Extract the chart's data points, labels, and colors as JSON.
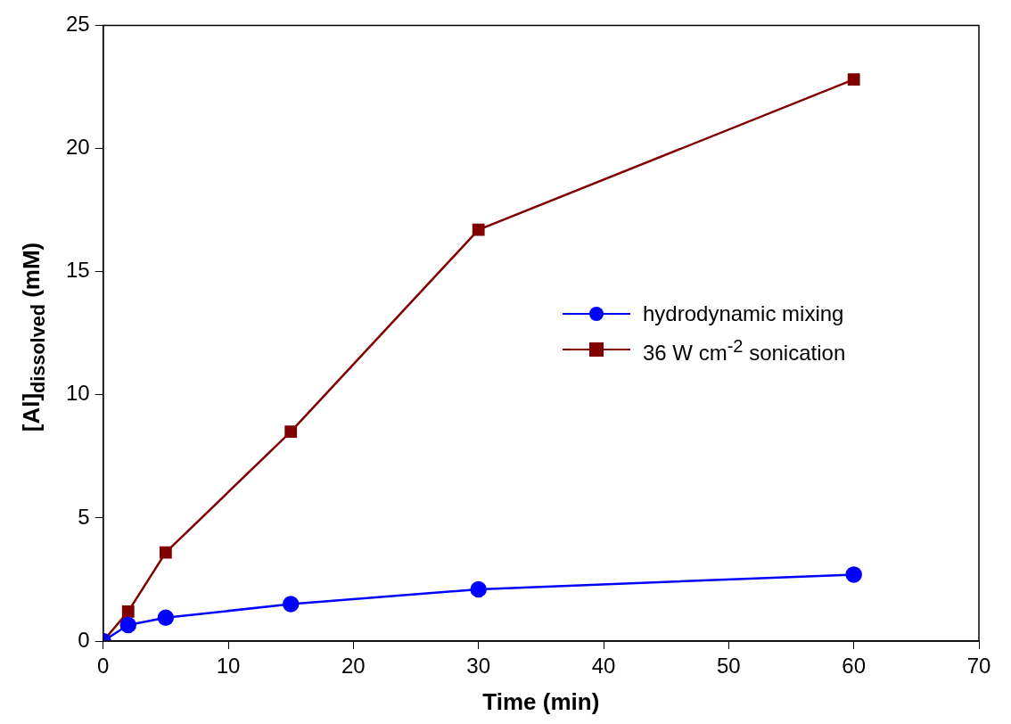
{
  "chart_data": {
    "type": "line",
    "xlabel": "Time (min)",
    "ylabel": "[Al]$_{dissolved}$ (mM)",
    "x": [
      0,
      2,
      5,
      15,
      30,
      60
    ],
    "series": [
      {
        "name": "hydrodynamic mixing",
        "color": "#0000ff",
        "marker": "circle",
        "values": [
          0,
          0.65,
          0.95,
          1.5,
          2.1,
          2.7
        ]
      },
      {
        "name": "36 W cm$^{-2}$ sonication",
        "color": "#800000",
        "marker": "square",
        "values": [
          0,
          1.2,
          3.6,
          8.5,
          16.7,
          22.8
        ]
      }
    ],
    "xlim": [
      0,
      70
    ],
    "xticks": [
      0,
      10,
      20,
      30,
      40,
      50,
      60,
      70
    ],
    "ylim": [
      0,
      25
    ],
    "yticks": [
      0,
      5,
      10,
      15,
      20,
      25
    ],
    "grid": false,
    "legend": "right",
    "line_style": "solid"
  }
}
